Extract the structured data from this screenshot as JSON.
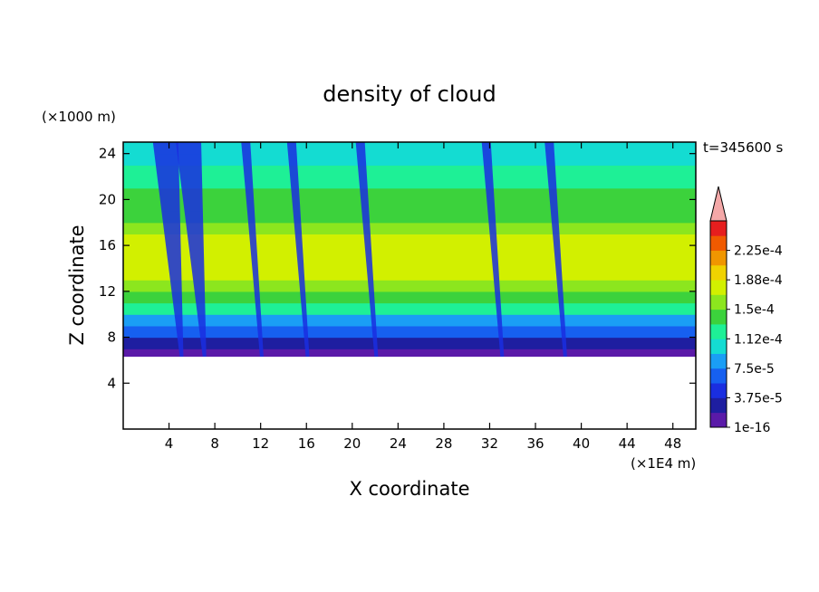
{
  "chart_data": {
    "type": "heatmap",
    "title": "density of cloud",
    "xlabel": "X coordinate",
    "ylabel": "Z coordinate",
    "x_unit": "(×1E4 m)",
    "y_unit": "(×1000 m)",
    "time_label": "t=345600 s",
    "xlim": [
      0,
      50
    ],
    "ylim": [
      0,
      25
    ],
    "x_ticks": [
      4,
      8,
      12,
      16,
      20,
      24,
      28,
      32,
      36,
      40,
      44,
      48
    ],
    "y_ticks": [
      4,
      8,
      12,
      16,
      20,
      24
    ],
    "colorbar": {
      "levels": [
        1e-16,
        1.875e-05,
        3.75e-05,
        5.625e-05,
        7.5e-05,
        9.375e-05,
        0.0001125,
        0.00013125,
        0.00015,
        0.00016875,
        0.0001875,
        0.00020625,
        0.000225,
        0.00024375
      ],
      "tick_labels": [
        "1e-16",
        "3.75e-5",
        "7.5e-5",
        "1.12e-4",
        "1.5e-4",
        "1.88e-4",
        "2.25e-4"
      ],
      "colors": [
        "#5a1aa8",
        "#1e1ea0",
        "#1a2ee0",
        "#1660f0",
        "#1a9ef5",
        "#14dcd2",
        "#1ef096",
        "#3cd23c",
        "#8ce61e",
        "#d2f000",
        "#f0d200",
        "#f09600",
        "#f05a00",
        "#e61e1e"
      ],
      "overflow_color": "#f4a8a8"
    },
    "vertical_profile": {
      "z": [
        6.3,
        7,
        8,
        9,
        10,
        11,
        12,
        13,
        14,
        15,
        16,
        17,
        18,
        19,
        20,
        21,
        22,
        23,
        24,
        25
      ],
      "level_index": [
        0,
        1,
        3,
        4,
        6,
        7,
        8,
        9,
        9,
        9,
        9,
        8,
        7,
        7,
        7,
        6,
        6,
        5,
        5,
        5
      ]
    },
    "cloud_base_z": 6.3,
    "downdraft_features_x": [
      4.5,
      6.5,
      11.5,
      15.5,
      21.5,
      32.5,
      38
    ]
  }
}
